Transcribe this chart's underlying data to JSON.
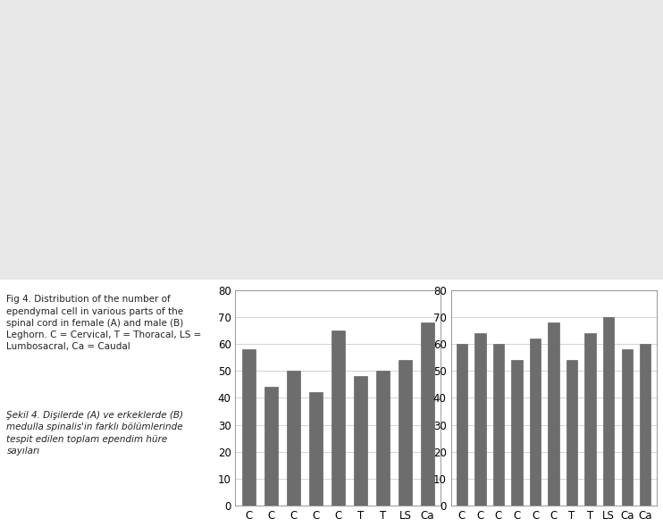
{
  "chart_A": {
    "label": "A",
    "values": [
      58,
      44,
      50,
      42,
      65,
      48,
      50,
      54,
      68
    ],
    "x_labels": [
      "C",
      "C",
      "C",
      "C",
      "C",
      "T",
      "T",
      "LS",
      "Ca"
    ],
    "ylim": [
      0,
      80
    ],
    "yticks": [
      0,
      10,
      20,
      30,
      40,
      50,
      60,
      70,
      80
    ]
  },
  "chart_B": {
    "label": "B",
    "values": [
      60,
      64,
      60,
      54,
      62,
      68,
      54,
      64,
      70,
      58,
      60
    ],
    "x_labels": [
      "C",
      "C",
      "C",
      "C",
      "C",
      "C",
      "T",
      "T",
      "LS",
      "Ca",
      "Ca"
    ],
    "ylim": [
      0,
      80
    ],
    "yticks": [
      0,
      10,
      20,
      30,
      40,
      50,
      60,
      70,
      80
    ]
  },
  "bar_color": "#6d6d6d",
  "bar_edge_color": "#555555",
  "grid_color": "#cccccc",
  "fig_background": "#ffffff",
  "chart_background": "#ffffff",
  "top_area_color": "#e8e8e8",
  "caption_fig4": "Fig 4. Distribution of the number of\nependymal cell in various parts of the\nspinal cord in female (A) and male (B)\nLeghorn. C = Cervical, T = Thoracal, LS =\nLumbosacral, Ca = Caudal",
  "caption_sekil4": "Şekil 4. Dişilerde (A) ve erkeklerde (B)\nmedulla spinalis'in farklı bölümlerinde\ntespit edilen toplam ependim hüre\nsayıları",
  "caption_fontsize": 7.5,
  "tick_fontsize": 8.5
}
